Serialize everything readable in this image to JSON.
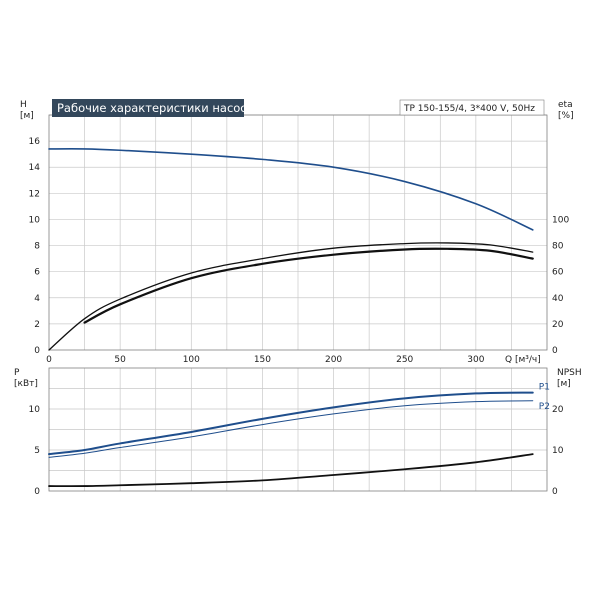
{
  "chart_data": [
    {
      "type": "line",
      "title": "Рабочие характеристики насоса",
      "subtitle": "TP 150-155/4, 3*400 V, 50Hz",
      "xlabel": "Q [м³/ч]",
      "xlim": [
        0,
        350
      ],
      "xticks": [
        0,
        50,
        100,
        150,
        200,
        250,
        300
      ],
      "ylabel_left": "H\n[м]",
      "ylim_left": [
        0,
        18
      ],
      "yticks_left": [
        0,
        2,
        4,
        6,
        8,
        10,
        12,
        14,
        16
      ],
      "ylabel_right": "eta\n[%]",
      "ylim_right": [
        0,
        180
      ],
      "yticks_right": [
        0,
        20,
        40,
        60,
        80,
        100
      ],
      "grid": true,
      "series": [
        {
          "axis": "left",
          "color": "#1f4e8c",
          "x": [
            0,
            25,
            50,
            100,
            150,
            200,
            250,
            300,
            340
          ],
          "y": [
            15.4,
            15.4,
            15.3,
            15.0,
            14.6,
            14.0,
            12.9,
            11.2,
            9.2
          ]
        },
        {
          "axis": "right",
          "color": "#111111",
          "x": [
            0,
            25,
            50,
            100,
            150,
            200,
            250,
            280,
            310,
            340
          ],
          "y": [
            0,
            24,
            39,
            59,
            70,
            78,
            81.5,
            82,
            80.5,
            75
          ]
        },
        {
          "axis": "right",
          "color": "#111111",
          "x": [
            25,
            50,
            100,
            150,
            200,
            250,
            280,
            310,
            340
          ],
          "y": [
            21,
            35,
            55,
            66,
            73,
            77,
            77.5,
            76,
            70
          ]
        }
      ]
    },
    {
      "type": "line",
      "xlim": [
        0,
        350
      ],
      "ylabel_left": "P\n[кВт]",
      "ylim_left": [
        0,
        15
      ],
      "yticks_left": [
        0,
        5,
        10
      ],
      "ylabel_right": "NPSH\n[м]",
      "ylim_right": [
        0,
        30
      ],
      "yticks_right": [
        0,
        10,
        20
      ],
      "grid": true,
      "series": [
        {
          "name": "P1",
          "axis": "left",
          "color": "#1f4e8c",
          "x": [
            0,
            25,
            50,
            100,
            150,
            200,
            250,
            300,
            340
          ],
          "y": [
            4.5,
            5.0,
            5.8,
            7.2,
            8.8,
            10.2,
            11.3,
            11.9,
            12.0
          ]
        },
        {
          "name": "P2",
          "axis": "left",
          "color": "#1f4e8c",
          "x": [
            0,
            25,
            50,
            100,
            150,
            200,
            250,
            300,
            340
          ],
          "y": [
            4.1,
            4.6,
            5.3,
            6.6,
            8.1,
            9.4,
            10.4,
            10.9,
            11.0
          ]
        },
        {
          "axis": "right",
          "color": "#111111",
          "x": [
            0,
            25,
            50,
            100,
            150,
            200,
            250,
            300,
            340
          ],
          "y": [
            1.2,
            1.2,
            1.4,
            1.9,
            2.6,
            3.9,
            5.3,
            7.0,
            9.0
          ]
        }
      ]
    }
  ]
}
